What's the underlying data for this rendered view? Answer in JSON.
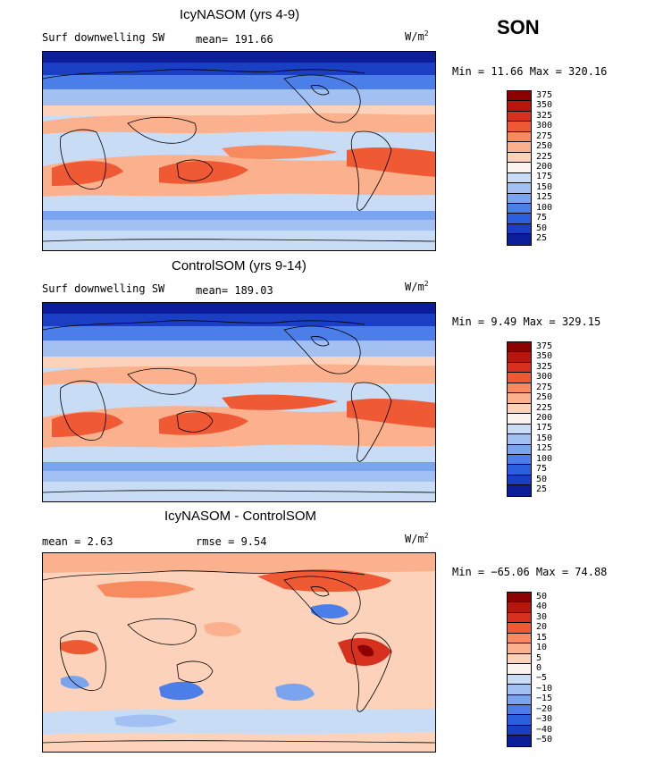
{
  "season": "SON",
  "units_main": "W/m",
  "units_sup": "2",
  "panels": [
    {
      "title": "IcyNASOM (yrs 4-9)",
      "left_label": "Surf downwelling SW",
      "stat_label": "mean= 191.66",
      "minmax": "Min =  11.66 Max = 320.16"
    },
    {
      "title": "ControlSOM (yrs 9-14)",
      "left_label": "Surf downwelling SW",
      "stat_label": "mean= 189.03",
      "minmax": "Min =   9.49 Max = 329.15"
    },
    {
      "title": "IcyNASOM - ControlSOM",
      "left_label": "mean =   2.63",
      "stat_label": "rmse =   9.54",
      "minmax": "Min = −65.06 Max =  74.88"
    }
  ],
  "chart_data": [
    {
      "type": "heatmap",
      "title": "IcyNASOM (yrs 4-9)",
      "subtitle": "Surf downwelling SW",
      "units": "W/m2",
      "mean": 191.66,
      "min": 11.66,
      "max": 320.16,
      "colorbar_levels": [
        "375",
        "350",
        "325",
        "300",
        "275",
        "250",
        "225",
        "200",
        "175",
        "150",
        "125",
        "100",
        "75",
        "50",
        "25"
      ],
      "colorbar_colors": [
        "#8b0000",
        "#b8150c",
        "#d7301f",
        "#ef5a34",
        "#f78b5f",
        "#fbb08e",
        "#fdd2bb",
        "#fbf3ee",
        "#c9dcf6",
        "#a2c1f2",
        "#7ba4ef",
        "#4b7ee9",
        "#2a5fde",
        "#1a3fc4",
        "#0c1d9a"
      ],
      "region": "global lat-lon map"
    },
    {
      "type": "heatmap",
      "title": "ControlSOM (yrs 9-14)",
      "subtitle": "Surf downwelling SW",
      "units": "W/m2",
      "mean": 189.03,
      "min": 9.49,
      "max": 329.15,
      "colorbar_levels": [
        "375",
        "350",
        "325",
        "300",
        "275",
        "250",
        "225",
        "200",
        "175",
        "150",
        "125",
        "100",
        "75",
        "50",
        "25"
      ],
      "colorbar_colors": [
        "#8b0000",
        "#b8150c",
        "#d7301f",
        "#ef5a34",
        "#f78b5f",
        "#fbb08e",
        "#fdd2bb",
        "#fbf3ee",
        "#c9dcf6",
        "#a2c1f2",
        "#7ba4ef",
        "#4b7ee9",
        "#2a5fde",
        "#1a3fc4",
        "#0c1d9a"
      ],
      "region": "global lat-lon map"
    },
    {
      "type": "heatmap",
      "title": "IcyNASOM - ControlSOM",
      "units": "W/m2",
      "mean": 2.63,
      "rmse": 9.54,
      "min": -65.06,
      "max": 74.88,
      "colorbar_levels": [
        "50",
        "40",
        "30",
        "20",
        "15",
        "10",
        "5",
        "0",
        "−5",
        "−10",
        "−15",
        "−20",
        "−30",
        "−40",
        "−50"
      ],
      "colorbar_colors": [
        "#8b0000",
        "#b8150c",
        "#d7301f",
        "#ef5a34",
        "#f78b5f",
        "#fbb08e",
        "#fdd2bb",
        "#fbf3ee",
        "#c9dcf6",
        "#a2c1f2",
        "#7ba4ef",
        "#4b7ee9",
        "#2a5fde",
        "#1a3fc4",
        "#0c1d9a"
      ],
      "region": "global lat-lon map"
    }
  ]
}
